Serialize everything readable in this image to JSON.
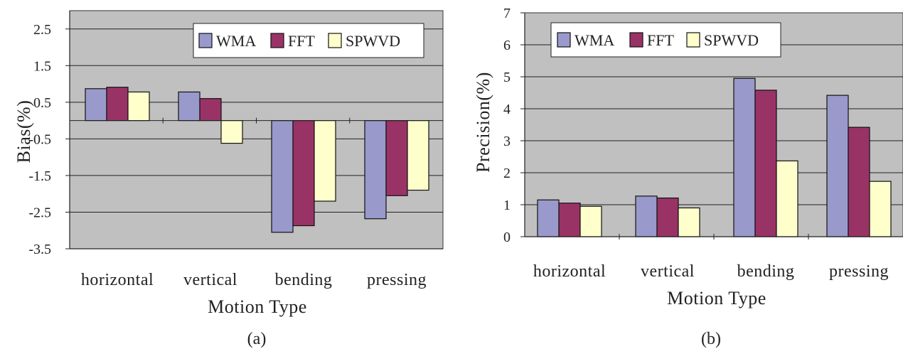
{
  "colors": {
    "plot_bg": "#c0c0c0",
    "grid": "#222222",
    "WMA": "#9999cc",
    "FFT": "#993366",
    "SPWVD": "#ffffcc"
  },
  "chart_data": [
    {
      "type": "bar",
      "caption": "(a)",
      "xlabel": "Motion Type",
      "ylabel": "Bias(%)",
      "categories": [
        "horizontal",
        "vertical",
        "bending",
        "pressing"
      ],
      "ylim": [
        -3.5,
        3.0
      ],
      "yticks": [
        2.5,
        1.5,
        0.5,
        -0.5,
        -1.5,
        -2.5,
        -3.5
      ],
      "ytick_labels": [
        "2.5",
        "1.5",
        "0.5",
        "-0.5",
        "-1.5",
        "-2.5",
        "-3.5"
      ],
      "grid": true,
      "legend": "top-right",
      "series": [
        {
          "name": "WMA",
          "values": [
            0.87,
            0.78,
            -3.05,
            -2.68
          ]
        },
        {
          "name": "FFT",
          "values": [
            0.91,
            0.6,
            -2.87,
            -2.05
          ]
        },
        {
          "name": "SPWVD",
          "values": [
            0.78,
            -0.62,
            -2.2,
            -1.9
          ]
        }
      ]
    },
    {
      "type": "bar",
      "caption": "(b)",
      "xlabel": "Motion Type",
      "ylabel": "Precision(%)",
      "categories": [
        "horizontal",
        "vertical",
        "bending",
        "pressing"
      ],
      "ylim": [
        0,
        7
      ],
      "yticks": [
        0,
        1,
        2,
        3,
        4,
        5,
        6,
        7
      ],
      "ytick_labels": [
        "0",
        "1",
        "2",
        "3",
        "4",
        "5",
        "6",
        "7"
      ],
      "grid": true,
      "legend": "top-left",
      "series": [
        {
          "name": "WMA",
          "values": [
            1.15,
            1.27,
            4.95,
            4.42
          ]
        },
        {
          "name": "FFT",
          "values": [
            1.05,
            1.21,
            4.58,
            3.42
          ]
        },
        {
          "name": "SPWVD",
          "values": [
            0.95,
            0.9,
            2.37,
            1.73
          ]
        }
      ]
    }
  ]
}
